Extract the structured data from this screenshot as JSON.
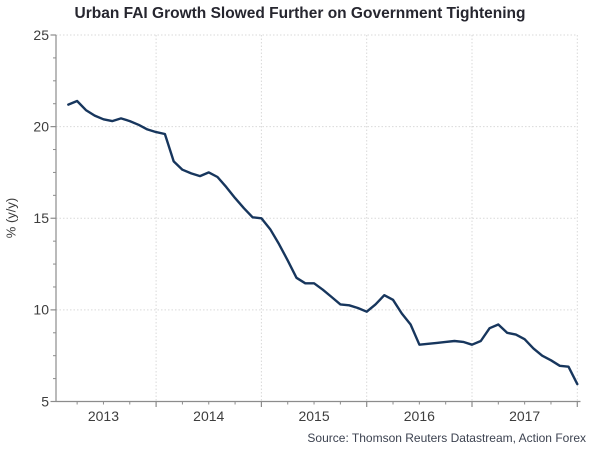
{
  "source": "Source: Thomson Reuters Datastream, Action Forex",
  "colors": {
    "line": "#17365d",
    "grid": "#d9d9d9",
    "axis": "#8c8c8c",
    "tick_label": "#3d3d3d",
    "title": "#26262f",
    "source_text": "#3c4250",
    "background": "#ffffff"
  },
  "chart_data": {
    "type": "line",
    "title": "Urban FAI Growth Slowed Further on Government Tightening",
    "xlabel": "",
    "ylabel": "% (y/y)",
    "ylim": [
      5,
      25
    ],
    "yticks": [
      5,
      10,
      15,
      20,
      25
    ],
    "y_minor_tick_step": 1.25,
    "x_tick_years": [
      "2013",
      "2014",
      "2015",
      "2016",
      "2017"
    ],
    "x_minor_ticks": "quarterly",
    "grid": "dotted horizontal lines at y ticks, dotted vertical lines at year boundaries",
    "legend_position": "none",
    "series": [
      {
        "name": "Urban FAI growth (% y/y)",
        "color": "#17365d",
        "x": [
          "2013-03",
          "2013-04",
          "2013-05",
          "2013-06",
          "2013-07",
          "2013-08",
          "2013-09",
          "2013-10",
          "2013-11",
          "2013-12",
          "2014-01",
          "2014-02",
          "2014-03",
          "2014-04",
          "2014-05",
          "2014-06",
          "2014-07",
          "2014-08",
          "2014-09",
          "2014-10",
          "2014-11",
          "2014-12",
          "2015-01",
          "2015-02",
          "2015-03",
          "2015-04",
          "2015-05",
          "2015-06",
          "2015-07",
          "2015-08",
          "2015-09",
          "2015-10",
          "2015-11",
          "2015-12",
          "2016-01",
          "2016-02",
          "2016-03",
          "2016-04",
          "2016-05",
          "2016-06",
          "2016-07",
          "2016-08",
          "2016-09",
          "2016-10",
          "2016-11",
          "2016-12",
          "2017-01",
          "2017-02",
          "2017-03",
          "2017-04",
          "2017-05",
          "2017-06",
          "2017-07",
          "2017-08",
          "2017-09",
          "2017-10",
          "2017-11",
          "2017-12",
          "2018-01"
        ],
        "values": [
          21.2,
          21.4,
          20.9,
          20.6,
          20.4,
          20.3,
          20.45,
          20.3,
          20.1,
          19.85,
          19.7,
          19.6,
          18.1,
          17.65,
          17.45,
          17.3,
          17.5,
          17.25,
          16.7,
          16.1,
          15.55,
          15.05,
          15.0,
          14.4,
          13.6,
          12.7,
          11.75,
          11.45,
          11.45,
          11.1,
          10.7,
          10.3,
          10.25,
          10.1,
          9.9,
          10.3,
          10.8,
          10.55,
          9.8,
          9.2,
          8.1,
          8.15,
          8.2,
          8.25,
          8.3,
          8.25,
          8.1,
          8.3,
          9.0,
          9.2,
          8.75,
          8.65,
          8.4,
          7.9,
          7.5,
          7.25,
          6.95,
          6.9,
          5.95
        ]
      }
    ]
  }
}
